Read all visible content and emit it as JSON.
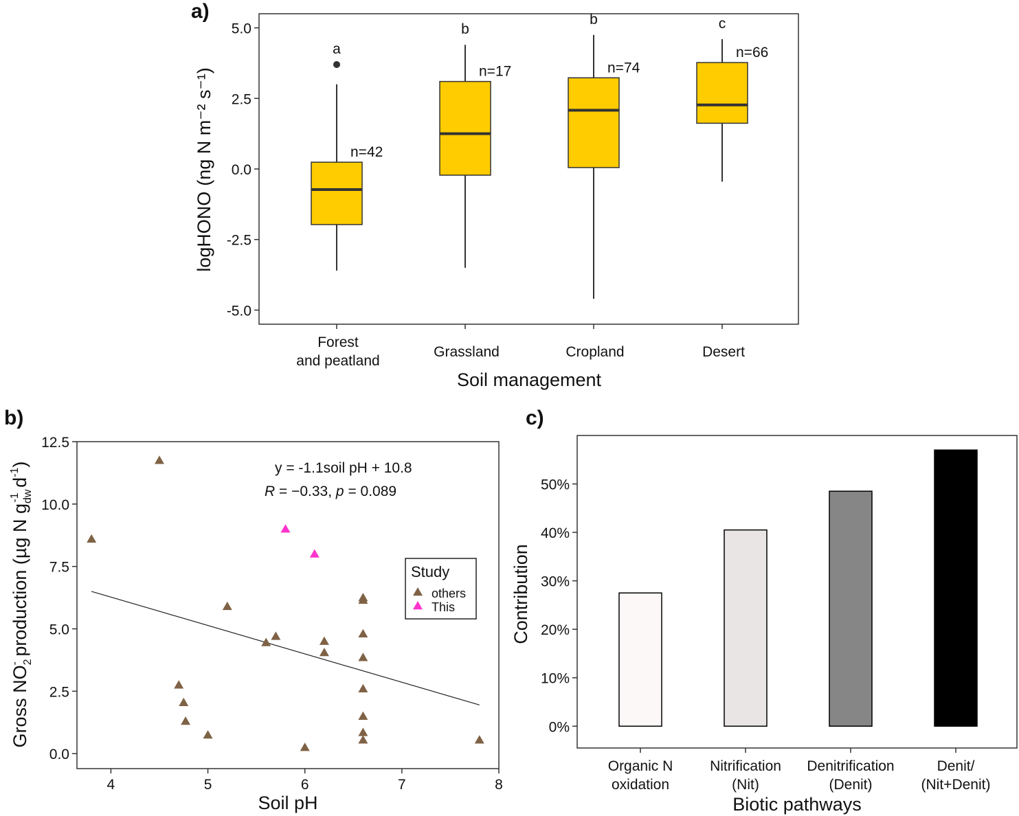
{
  "panels": {
    "a": {
      "label": "a)",
      "chart_data": {
        "type": "box",
        "xlabel": "Soil management",
        "ylabel": "logHONO",
        "ylabel_unit": "(ng N m⁻² s⁻¹)",
        "ylim": [
          -5.5,
          5.5
        ],
        "yticks": [
          5.0,
          2.5,
          0.0,
          -2.5,
          -5.0
        ],
        "ytick_labels": [
          "5.0",
          "2.5",
          "0.0",
          "-2.5",
          "-5.0"
        ],
        "box_color": "#FFCC00",
        "categories": [
          {
            "label_lines": [
              "Forest",
              "and peatland"
            ],
            "min": -3.6,
            "q1": -1.97,
            "median": -0.73,
            "q3": 0.24,
            "max": 3.0,
            "outliers": [
              3.7
            ],
            "letter": "a",
            "n": "n=42"
          },
          {
            "label_lines": [
              "Grassland"
            ],
            "min": -3.5,
            "q1": -0.22,
            "median": 1.25,
            "q3": 3.1,
            "max": 4.4,
            "outliers": [],
            "letter": "b",
            "n": "n=17"
          },
          {
            "label_lines": [
              "Cropland"
            ],
            "min": -4.6,
            "q1": 0.05,
            "median": 2.08,
            "q3": 3.23,
            "max": 4.75,
            "outliers": [],
            "letter": "b",
            "n": "n=74"
          },
          {
            "label_lines": [
              "Desert"
            ],
            "min": -0.45,
            "q1": 1.62,
            "median": 2.27,
            "q3": 3.77,
            "max": 4.6,
            "outliers": [],
            "letter": "c",
            "n": "n=66"
          }
        ]
      }
    },
    "b": {
      "label": "b)",
      "chart_data": {
        "type": "scatter",
        "xlabel": "Soil pH",
        "ylabel": "Gross NO₂⁻ production (µg N g_dw⁻¹ d⁻¹)",
        "ylabel_parts": [
          "Gross NO",
          "2",
          "-",
          " production (µg N g",
          "dw",
          "-1",
          " d",
          "-1",
          ")"
        ],
        "xlim": [
          3.65,
          8.0
        ],
        "ylim": [
          -0.6,
          12.5
        ],
        "xticks": [
          4,
          5,
          6,
          7,
          8
        ],
        "xtick_labels": [
          "4",
          "5",
          "6",
          "7",
          "8"
        ],
        "yticks": [
          0.0,
          2.5,
          5.0,
          7.5,
          10.0,
          12.5
        ],
        "ytick_labels": [
          "0.0",
          "2.5",
          "5.0",
          "7.5",
          "10.0",
          "12.5"
        ],
        "equation": "y = -1.1soil pH + 10.8",
        "stats_parts": [
          "R",
          " = −0.33, ",
          "p",
          " = 0.089"
        ],
        "regression": {
          "x1": 3.8,
          "y1": 6.5,
          "x2": 7.8,
          "y2": 1.95
        },
        "legend_title": "Study",
        "series": [
          {
            "name": "others",
            "color": "#7F6245",
            "points": [
              [
                3.8,
                8.6
              ],
              [
                4.5,
                11.75
              ],
              [
                4.7,
                2.75
              ],
              [
                4.75,
                2.05
              ],
              [
                4.77,
                1.3
              ],
              [
                5.0,
                0.75
              ],
              [
                5.2,
                5.9
              ],
              [
                5.6,
                4.45
              ],
              [
                5.7,
                4.7
              ],
              [
                6.0,
                0.25
              ],
              [
                6.2,
                4.5
              ],
              [
                6.2,
                4.05
              ],
              [
                6.6,
                6.25
              ],
              [
                6.6,
                6.15
              ],
              [
                6.6,
                4.8
              ],
              [
                6.6,
                3.85
              ],
              [
                6.6,
                2.6
              ],
              [
                6.6,
                1.5
              ],
              [
                6.6,
                0.85
              ],
              [
                6.6,
                0.55
              ],
              [
                7.8,
                0.55
              ]
            ]
          },
          {
            "name": "This",
            "color": "#FF33CC",
            "points": [
              [
                5.8,
                9.0
              ],
              [
                6.1,
                8.0
              ]
            ]
          }
        ]
      }
    },
    "c": {
      "label": "c)",
      "chart_data": {
        "type": "bar",
        "xlabel": "Biotic pathways",
        "ylabel": "Contribution",
        "ylim": [
          -0.045,
          0.6
        ],
        "yticks": [
          0,
          0.1,
          0.2,
          0.3,
          0.4,
          0.5
        ],
        "ytick_labels": [
          "0%",
          "10%",
          "20%",
          "30%",
          "40%",
          "50%"
        ],
        "categories": [
          {
            "label_lines": [
              "Organic N",
              "oxidation"
            ],
            "value": 0.275,
            "color": "#FDF8F8"
          },
          {
            "label_lines": [
              "Nitrification",
              "(Nit)"
            ],
            "value": 0.405,
            "color": "#E8E5E4"
          },
          {
            "label_lines": [
              "Denitrification",
              "(Denit)"
            ],
            "value": 0.485,
            "color": "#868686"
          },
          {
            "label_lines": [
              "Denit/",
              "(Nit+Denit)"
            ],
            "value": 0.57,
            "color": "#000000"
          }
        ]
      }
    }
  }
}
